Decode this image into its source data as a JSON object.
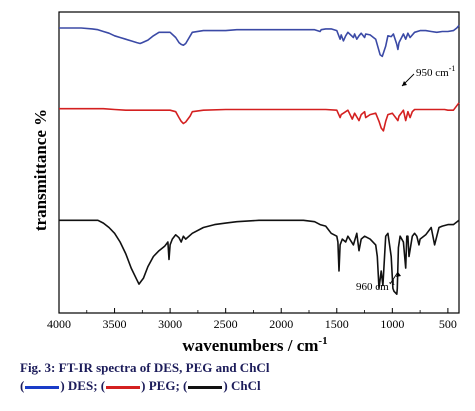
{
  "chart_data": {
    "type": "line",
    "xlabel": "wavenumbers / cm",
    "xlabel_superscript": "-1",
    "ylabel": "transmittance %",
    "xlim": [
      4000,
      400
    ],
    "xticks": [
      4000,
      3500,
      3000,
      2500,
      2000,
      1500,
      1000,
      500
    ],
    "y_ticks_shown": false,
    "grid": false,
    "annotations": [
      {
        "text": "950 cm",
        "sup": "-1",
        "series": "DES",
        "x": 950
      },
      {
        "text": "960 cm",
        "sup": "-1",
        "series": "ChCl",
        "x": 960
      }
    ],
    "series": [
      {
        "name": "DES",
        "color": "#3b4aa6",
        "x": [
          4000,
          3900,
          3800,
          3700,
          3650,
          3600,
          3550,
          3500,
          3450,
          3400,
          3350,
          3300,
          3270,
          3250,
          3200,
          3150,
          3100,
          3000,
          2950,
          2920,
          2900,
          2880,
          2860,
          2800,
          2700,
          2600,
          2500,
          2400,
          2200,
          2000,
          1800,
          1700,
          1650,
          1640,
          1600,
          1550,
          1500,
          1470,
          1460,
          1440,
          1420,
          1400,
          1350,
          1340,
          1320,
          1300,
          1280,
          1250,
          1240,
          1200,
          1150,
          1110,
          1090,
          1060,
          1040,
          1010,
          990,
          960,
          950,
          940,
          900,
          880,
          860,
          840,
          800,
          750,
          700,
          650,
          600,
          550,
          500,
          450,
          420,
          400
        ],
        "y": [
          93,
          93,
          93,
          92,
          91,
          89,
          87,
          84,
          82,
          80,
          78,
          76,
          75,
          76,
          79,
          84,
          88,
          88,
          82,
          76,
          74,
          73,
          75,
          88,
          90,
          90,
          90,
          91,
          91,
          91,
          91,
          91,
          89,
          91,
          92,
          92,
          90,
          80,
          85,
          78,
          84,
          88,
          82,
          86,
          80,
          84,
          87,
          82,
          86,
          85,
          80,
          62,
          60,
          72,
          84,
          83,
          86,
          74,
          68,
          76,
          86,
          80,
          87,
          82,
          88,
          90,
          90,
          89,
          88,
          89,
          89,
          90,
          93,
          96
        ]
      },
      {
        "name": "PEG",
        "color": "#d42020",
        "x": [
          4000,
          3800,
          3600,
          3500,
          3400,
          3300,
          3200,
          3100,
          3000,
          2950,
          2920,
          2900,
          2880,
          2860,
          2820,
          2800,
          2700,
          2500,
          2200,
          2000,
          1800,
          1700,
          1650,
          1600,
          1500,
          1470,
          1460,
          1440,
          1400,
          1360,
          1340,
          1300,
          1280,
          1250,
          1240,
          1200,
          1150,
          1120,
          1100,
          1080,
          1060,
          1040,
          1000,
          960,
          950,
          940,
          900,
          880,
          860,
          840,
          820,
          800,
          700,
          600,
          530,
          500,
          450,
          400
        ],
        "y": [
          72,
          72,
          72,
          71,
          70,
          70,
          70,
          70,
          70,
          68,
          60,
          55,
          52,
          54,
          62,
          68,
          70,
          71,
          71,
          71,
          71,
          71,
          71,
          71,
          70,
          60,
          64,
          66,
          70,
          58,
          66,
          56,
          64,
          68,
          60,
          64,
          66,
          55,
          46,
          42,
          55,
          64,
          66,
          58,
          56,
          62,
          70,
          56,
          68,
          60,
          68,
          71,
          71,
          71,
          71,
          70,
          70,
          80
        ]
      },
      {
        "name": "ChCl",
        "color": "#111111",
        "x": [
          4000,
          3800,
          3650,
          3600,
          3550,
          3500,
          3450,
          3400,
          3350,
          3300,
          3280,
          3260,
          3240,
          3200,
          3150,
          3100,
          3050,
          3020,
          3010,
          3000,
          2980,
          2950,
          2920,
          2900,
          2880,
          2860,
          2800,
          2700,
          2600,
          2500,
          2400,
          2200,
          2000,
          1900,
          1800,
          1700,
          1650,
          1600,
          1550,
          1500,
          1490,
          1480,
          1470,
          1450,
          1420,
          1400,
          1350,
          1320,
          1300,
          1280,
          1250,
          1200,
          1150,
          1135,
          1120,
          1100,
          1085,
          1060,
          1040,
          1010,
          995,
          985,
          960,
          955,
          945,
          930,
          900,
          880,
          870,
          860,
          850,
          820,
          800,
          780,
          760,
          750,
          700,
          650,
          620,
          600,
          580,
          550,
          500,
          450,
          400
        ],
        "y": [
          55,
          55,
          55,
          53,
          50,
          46,
          40,
          32,
          22,
          14,
          11,
          13,
          15,
          23,
          30,
          34,
          37,
          40,
          28,
          38,
          42,
          45,
          43,
          40,
          44,
          42,
          46,
          50,
          52,
          53,
          54,
          55,
          55,
          55,
          55,
          54,
          52,
          51,
          46,
          44,
          40,
          20,
          38,
          42,
          40,
          44,
          38,
          46,
          34,
          42,
          44,
          42,
          38,
          30,
          8,
          20,
          10,
          44,
          46,
          30,
          8,
          6,
          4,
          8,
          36,
          44,
          40,
          22,
          44,
          44,
          30,
          44,
          46,
          44,
          38,
          42,
          45,
          50,
          38,
          44,
          50,
          51,
          52,
          52,
          55
        ]
      }
    ]
  },
  "caption": {
    "line1": "Fig. 3: FT-IR spectra of DES, PEG and ChCl",
    "legend_items": [
      {
        "label": ") DES;",
        "color": "#1a3cc8"
      },
      {
        "label": ") PEG;",
        "color": "#d42020"
      },
      {
        "label": ") ChCl",
        "color": "#111111"
      }
    ]
  }
}
